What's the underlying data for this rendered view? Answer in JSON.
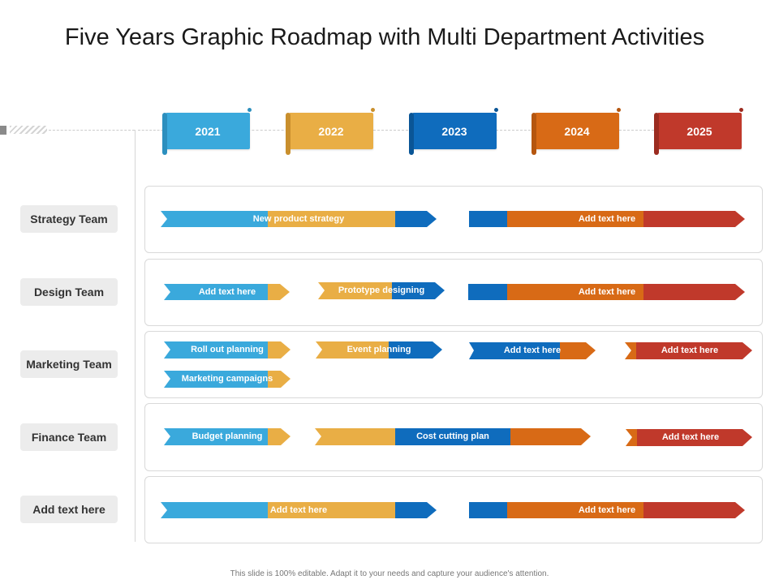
{
  "title": "Five Years Graphic Roadmap with Multi Department Activities",
  "footer": "This slide is 100% editable. Adapt it to your needs and capture your audience's attention.",
  "colors": {
    "light_blue": "#3AA9DC",
    "yellow": "#E9AE45",
    "blue": "#0F6CBD",
    "orange": "#D86A16",
    "red": "#C0392B"
  },
  "years": [
    {
      "label": "2021",
      "color": "#3AA9DC"
    },
    {
      "label": "2022",
      "color": "#E9AE45"
    },
    {
      "label": "2023",
      "color": "#0F6CBD"
    },
    {
      "label": "2024",
      "color": "#D86A16"
    },
    {
      "label": "2025",
      "color": "#C0392B"
    }
  ],
  "teams": [
    {
      "label": "Strategy Team"
    },
    {
      "label": "Design Team"
    },
    {
      "label": "Marketing Team"
    },
    {
      "label": "Finance Team"
    },
    {
      "label": "Add text here"
    }
  ],
  "activities": {
    "strategy_1": "New product strategy",
    "strategy_2": "Add text here",
    "design_1": "Add text here",
    "design_2": "Prototype designing",
    "design_3": "Add text here",
    "marketing_1": "Roll out planning",
    "marketing_2": "Event planning",
    "marketing_3": "Add text here",
    "marketing_4": "Add text here",
    "marketing_5": "Marketing campaigns",
    "finance_1": "Budget planning",
    "finance_2": "Cost cutting plan",
    "finance_3": "Add text here",
    "other_1": "Add text here",
    "other_2": "Add text here"
  }
}
